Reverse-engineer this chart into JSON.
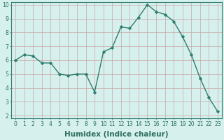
{
  "x": [
    0,
    1,
    2,
    3,
    4,
    5,
    6,
    7,
    8,
    9,
    10,
    11,
    12,
    13,
    14,
    15,
    16,
    17,
    18,
    19,
    20,
    21,
    22,
    23
  ],
  "y": [
    6.0,
    6.4,
    6.3,
    5.8,
    5.8,
    5.0,
    4.9,
    5.0,
    5.0,
    3.7,
    6.6,
    6.9,
    8.4,
    8.3,
    9.1,
    10.0,
    9.5,
    9.3,
    8.8,
    7.7,
    6.4,
    4.7,
    3.3,
    2.3
  ],
  "line_color": "#2d7d6e",
  "marker": "D",
  "marker_size": 1.8,
  "line_width": 1.0,
  "xlabel": "Humidex (Indice chaleur)",
  "xlim": [
    -0.5,
    23.5
  ],
  "ylim": [
    1.8,
    10.2
  ],
  "yticks": [
    2,
    3,
    4,
    5,
    6,
    7,
    8,
    9,
    10
  ],
  "xticks": [
    0,
    1,
    2,
    3,
    4,
    5,
    6,
    7,
    8,
    9,
    10,
    11,
    12,
    13,
    14,
    15,
    16,
    17,
    18,
    19,
    20,
    21,
    22,
    23
  ],
  "bg_color": "#d6f0ed",
  "grid_color": "#c9a8a8",
  "axis_color": "#2d7d6e",
  "tick_color": "#2d6e60",
  "tick_label_fontsize": 5.5,
  "xlabel_fontsize": 7.5,
  "xlabel_bold": true
}
